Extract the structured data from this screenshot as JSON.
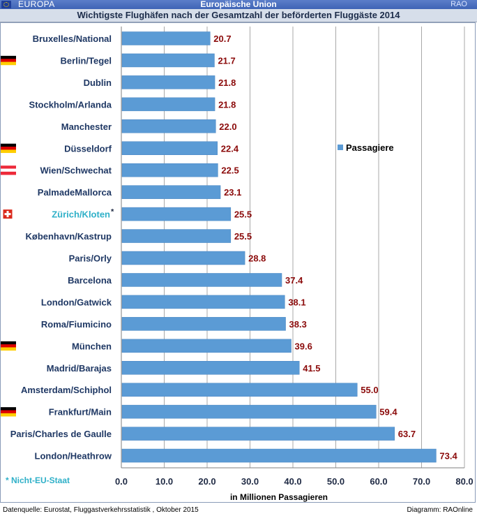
{
  "header": {
    "region": "EUROPA",
    "union": "Europäische Union",
    "brand": "RAO"
  },
  "title": "Wichtigste Flughäfen nach der Gesamtzahl der beförderten Fluggäste 2014",
  "footnote": "* Nicht-EU-Staat",
  "source": "Datenquelle: Eurostat, Fluggastverkehrsstatistik , Oktober 2015",
  "credit": "Diagramm: RAOnline",
  "colors": {
    "bar": "#5b9bd5",
    "label": "#1f3864",
    "value": "#8b0a0a",
    "non_eu": "#2fb0c8"
  },
  "chart_data": {
    "type": "bar",
    "orientation": "horizontal",
    "title": "Wichtigste Flughäfen nach der Gesamtzahl der beförderten Fluggäste 2014",
    "xlabel": "in Millionen Passagieren",
    "ylabel": "",
    "xlim": [
      0,
      80
    ],
    "ticks": [
      "0.0",
      "10.0",
      "20.0",
      "30.0",
      "40.0",
      "50.0",
      "60.0",
      "70.0",
      "80.0"
    ],
    "grid": true,
    "legend_position": "right",
    "categories": [
      "Bruxelles/National",
      "Berlin/Tegel",
      "Dublin",
      "Stockholm/Arlanda",
      "Manchester",
      "Düsseldorf",
      "Wien/Schwechat",
      "PalmadeMallorca",
      "Zürich/Kloten",
      "København/Kastrup",
      "Paris/Orly",
      "Barcelona",
      "London/Gatwick",
      "Roma/Fiumicino",
      "München",
      "Madrid/Barajas",
      "Amsterdam/Schiphol",
      "Frankfurt/Main",
      "Paris/Charles de Gaulle",
      "London/Heathrow"
    ],
    "series": [
      {
        "name": "Passagiere",
        "values": [
          20.7,
          21.7,
          21.8,
          21.8,
          22.0,
          22.4,
          22.5,
          23.1,
          25.5,
          25.5,
          28.8,
          37.4,
          38.1,
          38.3,
          39.6,
          41.5,
          55.0,
          59.4,
          63.7,
          73.4
        ],
        "labels": [
          "20.7",
          "21.7",
          "21.8",
          "21.8",
          "22.0",
          "22.4",
          "22.5",
          "23.1",
          "25.5",
          "25.5",
          "28.8",
          "37.4",
          "38.1",
          "38.3",
          "39.6",
          "41.5",
          "55.0",
          "59.4",
          "63.7",
          "73.4"
        ]
      }
    ],
    "flags": [
      "",
      "de",
      "",
      "",
      "",
      "de",
      "at",
      "",
      "ch",
      "",
      "",
      "",
      "",
      "",
      "de",
      "",
      "",
      "de",
      "",
      ""
    ],
    "non_eu_marks": [
      "",
      "",
      "",
      "",
      "",
      "",
      "",
      "",
      "*",
      "",
      "",
      "",
      "",
      "",
      "",
      "",
      "",
      "",
      "",
      ""
    ]
  }
}
